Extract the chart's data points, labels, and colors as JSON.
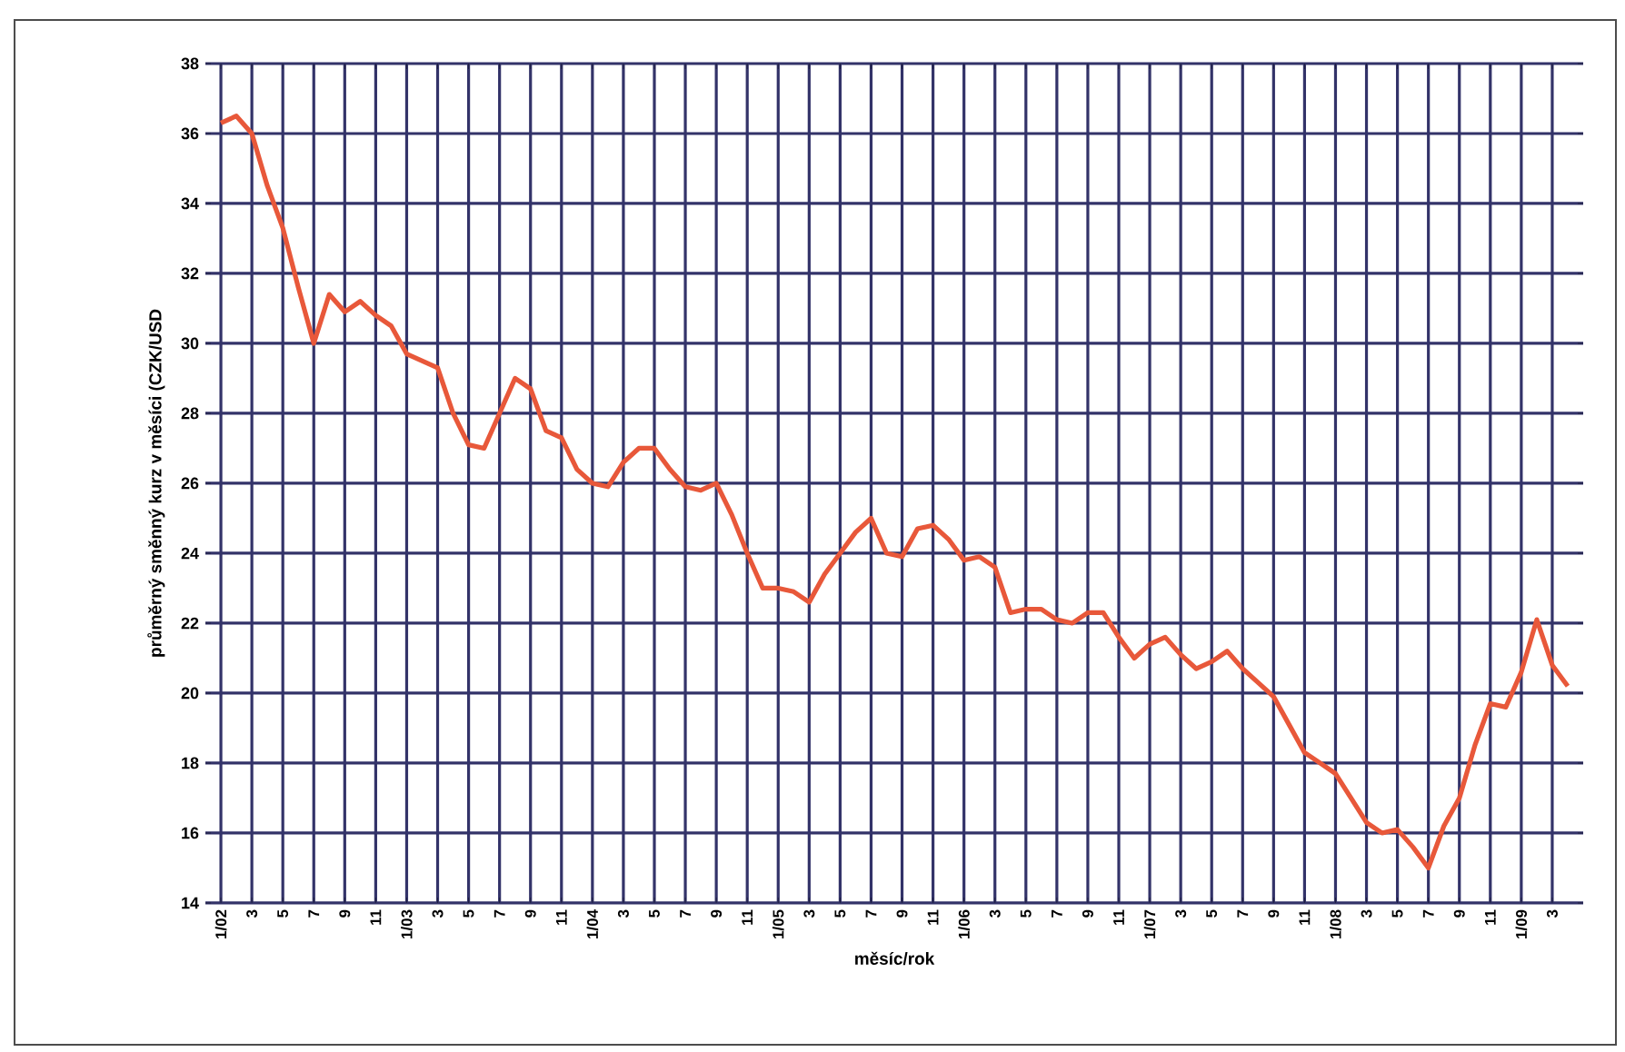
{
  "chart_data": {
    "type": "line",
    "xlabel": "měsíc/rok",
    "ylabel": "průměrný směnný kurz v měsíci (CZK/USD",
    "categories": [
      "1/02",
      null,
      "3",
      null,
      "5",
      null,
      "7",
      null,
      "9",
      null,
      "11",
      null,
      "1/03",
      null,
      "3",
      null,
      "5",
      null,
      "7",
      null,
      "9",
      null,
      "11",
      null,
      "1/04",
      null,
      "3",
      null,
      "5",
      null,
      "7",
      null,
      "9",
      null,
      "11",
      null,
      "1/05",
      null,
      "3",
      null,
      "5",
      null,
      "7",
      null,
      "9",
      null,
      "11",
      null,
      "1/06",
      null,
      "3",
      null,
      "5",
      null,
      "7",
      null,
      "9",
      null,
      "11",
      null,
      "1/07",
      null,
      "3",
      null,
      "5",
      null,
      "7",
      null,
      "9",
      null,
      "11",
      null,
      "1/08",
      null,
      "3",
      null,
      "5",
      null,
      "7",
      null,
      "9",
      null,
      "11",
      null,
      "1/09",
      null,
      "3",
      null
    ],
    "series": [
      {
        "color": "#e8583a",
        "values": [
          36.3,
          36.5,
          36.0,
          34.5,
          33.3,
          31.6,
          30.0,
          31.4,
          30.9,
          31.2,
          30.8,
          30.5,
          29.7,
          29.5,
          29.3,
          28.0,
          27.1,
          27.0,
          28.0,
          29.0,
          28.7,
          27.5,
          27.3,
          26.4,
          26.0,
          25.9,
          26.6,
          27.0,
          27.0,
          26.4,
          25.9,
          25.8,
          26.0,
          25.1,
          24.0,
          23.0,
          23.0,
          22.9,
          22.6,
          23.4,
          24.0,
          24.6,
          25.0,
          24.0,
          23.9,
          24.7,
          24.8,
          24.4,
          23.8,
          23.9,
          23.6,
          22.3,
          22.4,
          22.4,
          22.1,
          22.0,
          22.3,
          22.3,
          21.6,
          21.0,
          21.4,
          21.6,
          21.1,
          20.7,
          20.9,
          21.2,
          20.7,
          20.3,
          19.9,
          19.1,
          18.3,
          18.0,
          17.7,
          17.0,
          16.3,
          16.0,
          16.1,
          15.6,
          15.0,
          16.2,
          17.0,
          18.5,
          19.7,
          19.6,
          20.6,
          22.1,
          20.8,
          20.2
        ]
      }
    ],
    "ylim": [
      14,
      38
    ],
    "yticks": [
      14,
      16,
      18,
      20,
      22,
      24,
      26,
      28,
      30,
      32,
      34,
      36,
      38
    ],
    "grid": true
  }
}
